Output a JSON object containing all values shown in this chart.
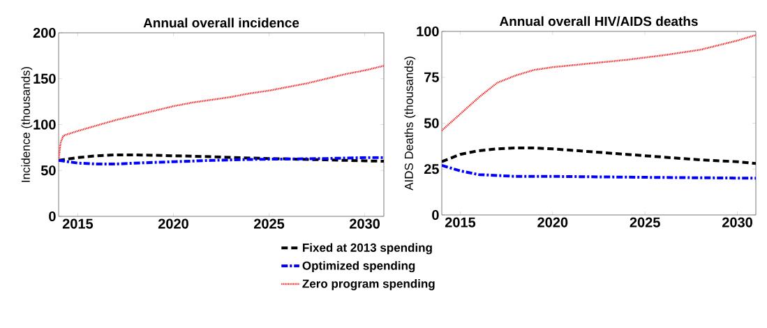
{
  "chart_data": [
    {
      "type": "line",
      "title": "Annual overall incidence",
      "ylabel": "Incidence (thousands)",
      "xlim": [
        2014,
        2031
      ],
      "ylim": [
        0,
        200
      ],
      "xticks": [
        2015,
        2020,
        2025,
        2030
      ],
      "yticks": [
        0,
        50,
        100,
        150,
        200
      ],
      "legend": "bottom",
      "grid": false,
      "series": [
        {
          "name": "Fixed at 2013 spending",
          "color": "#000000",
          "line_style": "dashed",
          "x": [
            2014,
            2015,
            2016,
            2017,
            2018,
            2019,
            2020,
            2022,
            2024,
            2026,
            2028,
            2030,
            2031
          ],
          "values": [
            61,
            64,
            66,
            67,
            67,
            66.5,
            66,
            65,
            63.5,
            62.5,
            61.5,
            60.5,
            60
          ]
        },
        {
          "name": "Optimized spending",
          "color": "#0000ff",
          "line_style": "dashdot",
          "x": [
            2014,
            2015,
            2016,
            2017,
            2018,
            2020,
            2022,
            2024,
            2026,
            2028,
            2030,
            2031
          ],
          "values": [
            61,
            58,
            57,
            57,
            58,
            59.5,
            61,
            62,
            62.5,
            63,
            64,
            64
          ]
        },
        {
          "name": "Zero program spending",
          "color": "#ff0000",
          "line_style": "dotted",
          "x": [
            2014,
            2014.1,
            2014.25,
            2015,
            2016,
            2017,
            2018,
            2019,
            2020,
            2021,
            2022,
            2023,
            2024,
            2025,
            2026,
            2027,
            2028,
            2029,
            2030,
            2031
          ],
          "values": [
            62,
            80,
            88,
            93,
            99,
            105,
            110,
            115,
            120,
            124,
            127,
            130,
            134,
            137,
            141,
            145,
            150,
            155,
            159,
            164
          ]
        }
      ]
    },
    {
      "type": "line",
      "title": "Annual overall HIV/AIDS deaths",
      "ylabel": "AIDS Deaths (thousands)",
      "xlim": [
        2014,
        2031
      ],
      "ylim": [
        0,
        100
      ],
      "xticks": [
        2015,
        2020,
        2025,
        2030
      ],
      "yticks": [
        0,
        25,
        50,
        75,
        100
      ],
      "grid": false,
      "series": [
        {
          "color": "#000000",
          "line_style": "dashed",
          "x": [
            2014,
            2015,
            2016,
            2017,
            2018,
            2019,
            2020,
            2022,
            2024,
            2026,
            2028,
            2030,
            2031
          ],
          "values": [
            29,
            33,
            35,
            36,
            36.5,
            36.5,
            36,
            34.5,
            33,
            31.5,
            30,
            29,
            28
          ]
        },
        {
          "color": "#0000ff",
          "line_style": "dashdot",
          "x": [
            2014,
            2015,
            2016,
            2017,
            2018,
            2020,
            2025,
            2031
          ],
          "values": [
            27,
            24,
            22,
            21.5,
            21,
            21,
            20.5,
            20
          ]
        },
        {
          "color": "#ff0000",
          "line_style": "dotted",
          "x": [
            2014,
            2015,
            2016,
            2017,
            2018,
            2019,
            2020,
            2022,
            2024,
            2026,
            2028,
            2030,
            2031
          ],
          "values": [
            46,
            55,
            64,
            72,
            76,
            79,
            80.5,
            82.5,
            84.5,
            87,
            90,
            95,
            98
          ]
        }
      ]
    }
  ]
}
